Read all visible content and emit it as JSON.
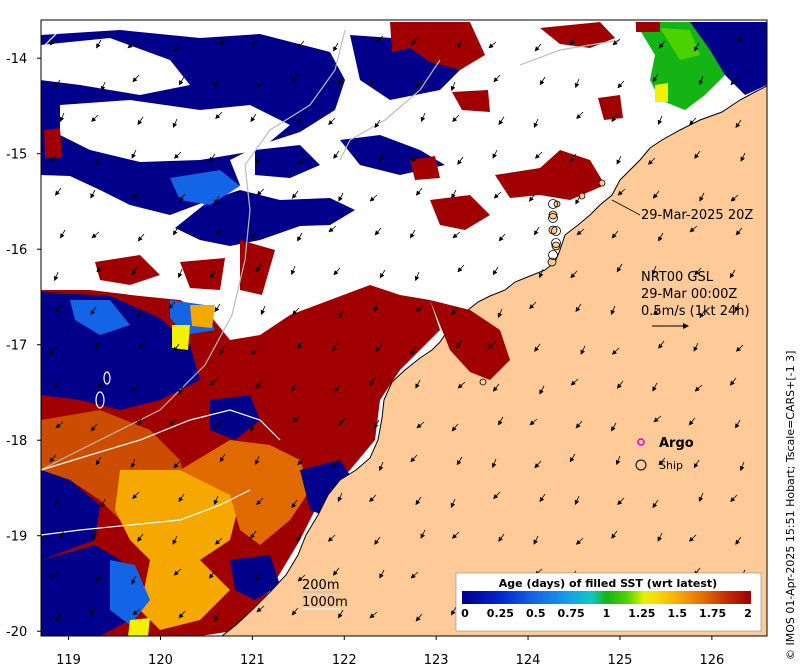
{
  "map": {
    "lat_ticks": [
      "-14",
      "-15",
      "-16",
      "-17",
      "-18",
      "-19",
      "-20"
    ],
    "lon_ticks": [
      "119",
      "120",
      "121",
      "122",
      "123",
      "124",
      "125",
      "126"
    ],
    "lat_values": [
      -14,
      -15,
      -16,
      -17,
      -18,
      -19,
      -20
    ],
    "lon_values": [
      119,
      120,
      121,
      122,
      123,
      124,
      125,
      126
    ],
    "extent": {
      "lon_min": 118.7,
      "lon_max": 126.6,
      "lat_min": -20.05,
      "lat_max": -13.6
    }
  },
  "annotations": {
    "ship_track_label": "29-Mar-2025 20Z",
    "product_line1": "NRT00 GSL",
    "product_line2": "29-Mar 00:00Z",
    "scale_vector_label": "0.5m/s (1kt 24h)"
  },
  "legend": {
    "argo_label": "Argo",
    "ship_label": "Ship",
    "contour_200": "200m",
    "contour_1000": "1000m",
    "colorbar_title": "Age (days) of filled SST (wrt latest)",
    "colorbar_ticks": [
      "0",
      "0.25",
      "0.5",
      "0.75",
      "1",
      "1.25",
      "1.5",
      "1.75",
      "2"
    ],
    "colorbar_range": [
      0,
      2
    ]
  },
  "credit": "© IMOS 01-Apr-2025 15:51 Hobart; Tscale=CARS+[-1 3]",
  "colors": {
    "land": "#fdca98",
    "cloud": "#ffffff",
    "age_0": "#00008b",
    "age_0_5": "#1e7be0",
    "age_1": "#13b413",
    "age_1_25": "#f2f200",
    "age_1_5": "#f5a800",
    "age_1_75": "#cc4c00",
    "age_2": "#a00000",
    "argo": "#e000e0"
  }
}
